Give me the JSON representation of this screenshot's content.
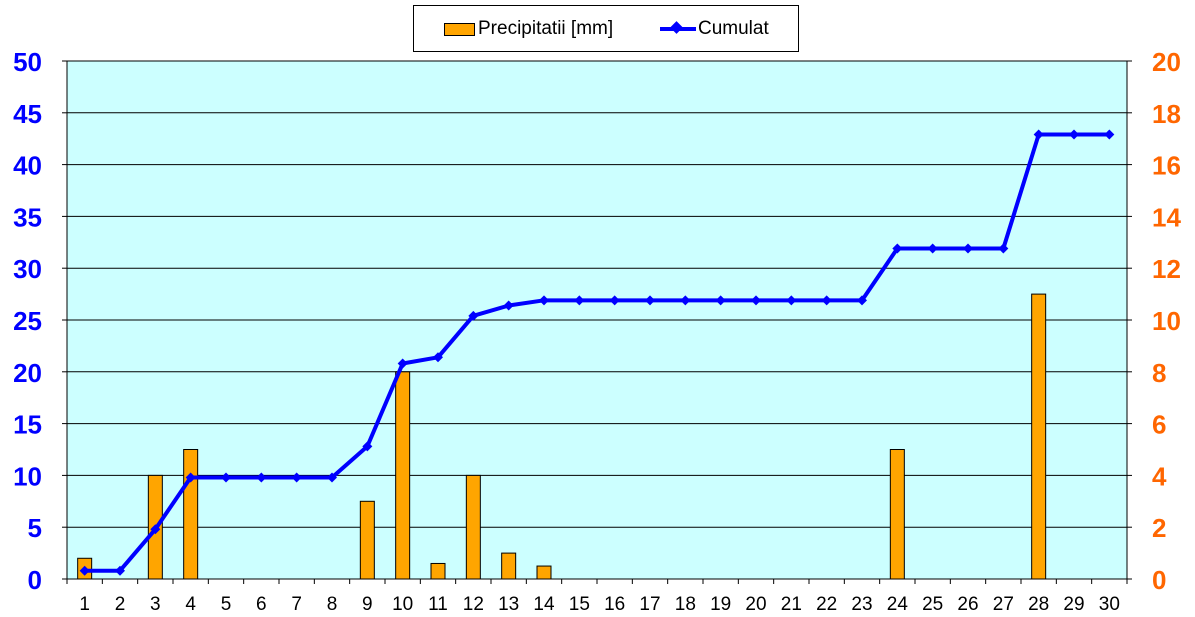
{
  "chart_data": {
    "type": "bar+line",
    "categories": [
      "1",
      "2",
      "3",
      "4",
      "5",
      "6",
      "7",
      "8",
      "9",
      "10",
      "11",
      "12",
      "13",
      "14",
      "15",
      "16",
      "17",
      "18",
      "19",
      "20",
      "21",
      "22",
      "23",
      "24",
      "25",
      "26",
      "27",
      "28",
      "29",
      "30"
    ],
    "series": [
      {
        "name": "Precipitatii [mm]",
        "type": "bar",
        "axis": "right",
        "values": [
          0.8,
          0,
          4.0,
          5.0,
          0,
          0,
          0,
          0,
          3.0,
          8.0,
          0.6,
          4.0,
          1.0,
          0.5,
          0,
          0,
          0,
          0,
          0,
          0,
          0,
          0,
          0,
          5.0,
          0,
          0,
          0,
          11.0,
          0,
          0
        ]
      },
      {
        "name": "Cumulat",
        "type": "line",
        "axis": "left",
        "values": [
          0.8,
          0.8,
          4.8,
          9.8,
          9.8,
          9.8,
          9.8,
          9.8,
          12.8,
          20.8,
          21.4,
          25.4,
          26.4,
          26.9,
          26.9,
          26.9,
          26.9,
          26.9,
          26.9,
          26.9,
          26.9,
          26.9,
          26.9,
          31.9,
          31.9,
          31.9,
          31.9,
          42.9,
          42.9,
          42.9
        ]
      }
    ],
    "y_left": {
      "min": 0,
      "max": 50,
      "step": 5,
      "ticks": [
        "0",
        "5",
        "10",
        "15",
        "20",
        "25",
        "30",
        "35",
        "40",
        "45",
        "50"
      ],
      "color": "#0000FF"
    },
    "y_right": {
      "min": 0,
      "max": 20,
      "step": 2,
      "ticks": [
        "0",
        "2",
        "4",
        "6",
        "8",
        "10",
        "12",
        "14",
        "16",
        "18",
        "20"
      ],
      "color": "#FF6600"
    },
    "plot_background": "#CCFFFF",
    "bar_color": "#FFA500",
    "line_color": "#0000FF",
    "grid": true,
    "legend_position": "top-center"
  },
  "legend": {
    "bar_label": "Precipitatii [mm]",
    "line_label": "Cumulat"
  }
}
